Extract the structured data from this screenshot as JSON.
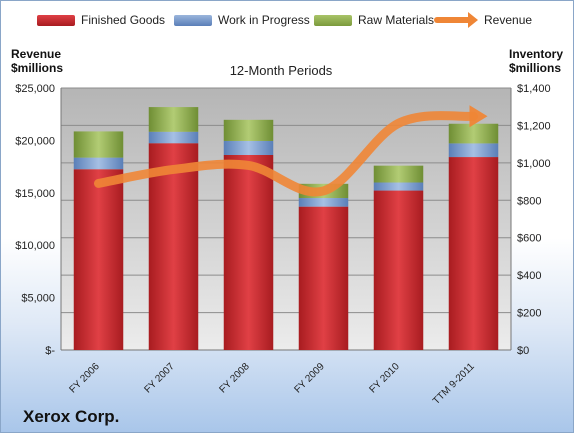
{
  "chart_data": {
    "type": "bar",
    "stacked": true,
    "categories": [
      "FY 2006",
      "FY 2007",
      "FY 2008",
      "FY 2009",
      "FY 2010",
      "TTM 9-2011"
    ],
    "series": [
      {
        "name": "Finished Goods",
        "axis": "right",
        "color": "#c0262b",
        "values": [
          966,
          1105,
          1042,
          766,
          852,
          1031
        ]
      },
      {
        "name": "Work in Progress",
        "axis": "right",
        "color": "#6b8fc4",
        "values": [
          62,
          61,
          75,
          46,
          43,
          73
        ]
      },
      {
        "name": "Raw Materials",
        "axis": "right",
        "color": "#8fae4c",
        "values": [
          140,
          132,
          113,
          76,
          90,
          105
        ]
      }
    ],
    "line_series": {
      "name": "Revenue",
      "axis": "left",
      "color": "#ef8636",
      "values": [
        15895,
        17228,
        17608,
        15179,
        21633,
        22300
      ]
    },
    "title": "12-Month Periods",
    "left_axis": {
      "label": "Revenue $millions",
      "ylim": [
        0,
        25000
      ],
      "ticks": [
        "$-",
        "$5,000",
        "$10,000",
        "$15,000",
        "$20,000",
        "$25,000"
      ]
    },
    "right_axis": {
      "label": "Inventory $millions",
      "ylim": [
        0,
        1400
      ],
      "ticks": [
        "$0",
        "$200",
        "$400",
        "$600",
        "$800",
        "$1,000",
        "$1,200",
        "$1,400"
      ]
    },
    "grid": true,
    "legend": "top"
  },
  "legend_items": [
    "Finished Goods",
    "Work in Progress",
    "Raw Materials",
    "Revenue"
  ],
  "left_axis_title": [
    "Revenue",
    "$millions"
  ],
  "right_axis_title": [
    "Inventory",
    "$millions"
  ],
  "company": "Xerox Corp."
}
